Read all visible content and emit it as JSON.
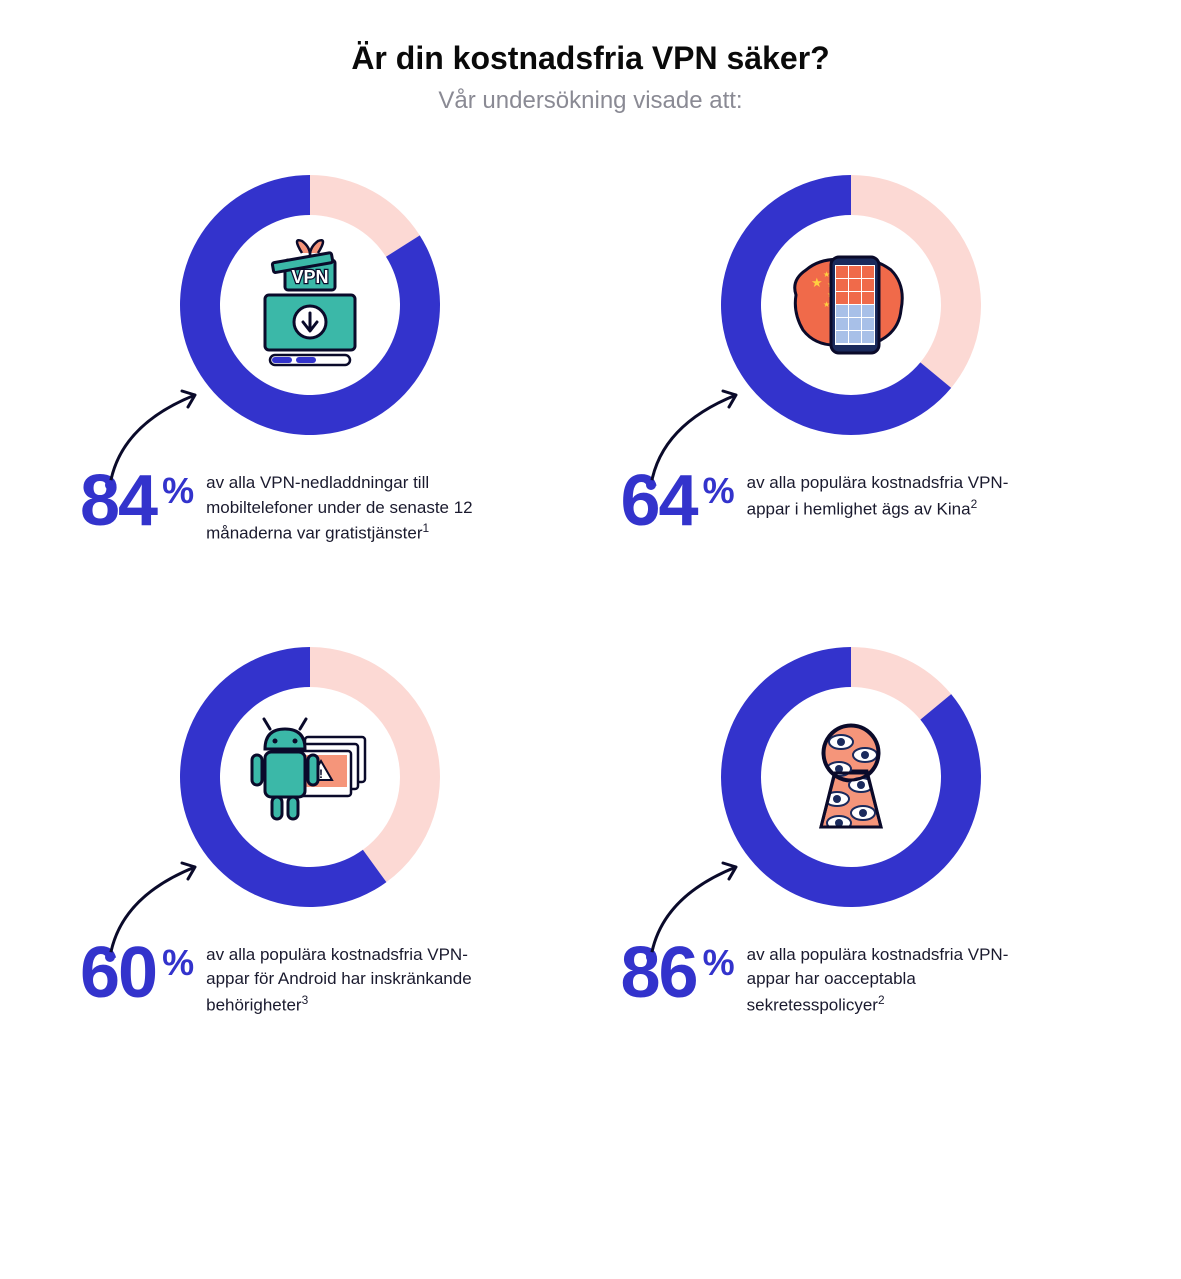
{
  "header": {
    "title": "Är din kostnadsfria VPN säker?",
    "subtitle": "Vår undersökning visade att:"
  },
  "colors": {
    "title_text": "#0a0a0a",
    "subtitle_text": "#8a8a94",
    "background": "#ffffff",
    "primary": "#3333cc",
    "secondary": "#fcd9d4",
    "icon_teal": "#3bb8a8",
    "icon_orange": "#f06a4a",
    "icon_salmon": "#f5957a",
    "icon_navy": "#1a2a5c",
    "icon_outline": "#0a0a2a"
  },
  "typography": {
    "title_fontsize": 32,
    "subtitle_fontsize": 24,
    "number_fontsize": 72,
    "pct_fontsize": 36,
    "desc_fontsize": 17
  },
  "donut": {
    "outer_radius": 130,
    "inner_radius": 90,
    "start_angle_deg": 0
  },
  "stats": [
    {
      "id": "downloads",
      "value": 84,
      "description": "av alla VPN-nedladdningar till mobiltelefoner under de senaste 12 månaderna var gratistjänster",
      "footnote": "1",
      "icon": "vpn-download"
    },
    {
      "id": "china",
      "value": 64,
      "description": "av alla populära kostnadsfria VPN-appar i hemlighet ägs av Kina",
      "footnote": "2",
      "icon": "china-phone"
    },
    {
      "id": "android",
      "value": 60,
      "description": "av alla populära kostnadsfria VPN-appar för Android har inskränkande behörigheter",
      "footnote": "3",
      "icon": "android-warning"
    },
    {
      "id": "privacy",
      "value": 86,
      "description": "av alla populära kostnadsfria VPN-appar har oacceptabla sekretesspolicyer",
      "footnote": "2",
      "icon": "keyhole-eyes"
    }
  ]
}
